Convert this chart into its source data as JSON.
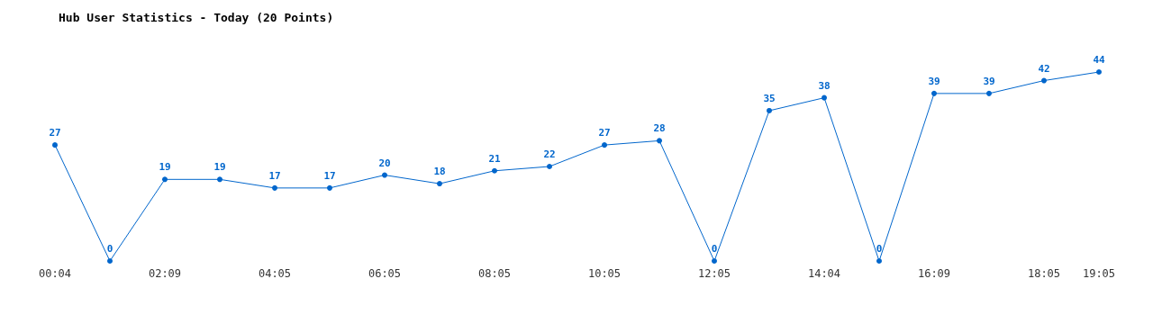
{
  "chart_data": {
    "type": "line",
    "title": "Hub User Statistics - Today (20 Points)",
    "categories": [
      "00:04",
      null,
      "02:09",
      null,
      "04:05",
      null,
      "06:05",
      null,
      "08:05",
      null,
      "10:05",
      null,
      "12:05",
      null,
      "14:04",
      null,
      "16:09",
      null,
      "18:05",
      "19:05"
    ],
    "series": [
      {
        "color": "#0066cc",
        "values": [
          27,
          0,
          19,
          19,
          17,
          17,
          20,
          18,
          21,
          22,
          27,
          28,
          0,
          35,
          38,
          0,
          39,
          39,
          42,
          44
        ]
      }
    ],
    "data_labels": true,
    "marker": "circle",
    "line_style": "solid",
    "grid": false
  }
}
